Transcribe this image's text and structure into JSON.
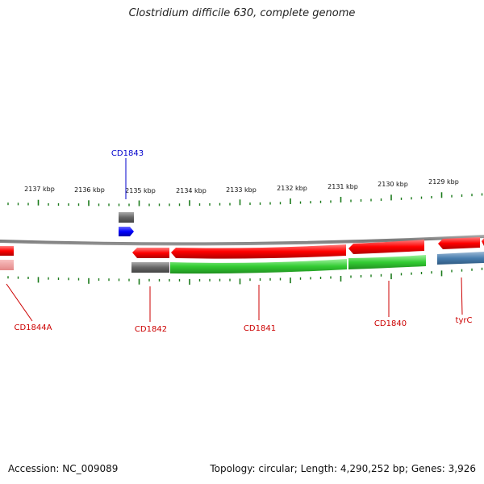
{
  "title": "Clostridium difficile 630, complete genome",
  "footer": {
    "accession": "Accession: NC_009089",
    "summary": "Topology: circular; Length: 4,290,252 bp; Genes: 3,926"
  },
  "ruler_labels": [
    "2137 kbp",
    "2136 kbp",
    "2135 kbp",
    "2134 kbp",
    "2133 kbp",
    "2132 kbp",
    "2131 kbp",
    "2130 kbp",
    "2129 kbp"
  ],
  "gene_labels": {
    "cd1843": "CD1843",
    "cd1844a": "CD1844A",
    "cd1842": "CD1842",
    "cd1841": "CD1841",
    "cd1840": "CD1840",
    "tyrc": "tyrC"
  },
  "colors": {
    "forward_gene": "#ff0000",
    "cds_green": "#33cc33",
    "cds_gray": "#666666",
    "blue_gene": "#0000ff",
    "steelblue_cds": "#4a7fb0",
    "backbone": "#888888",
    "ticks": "#1a7a1a",
    "label_red": "#cc0000",
    "label_blue": "#0000cc"
  }
}
